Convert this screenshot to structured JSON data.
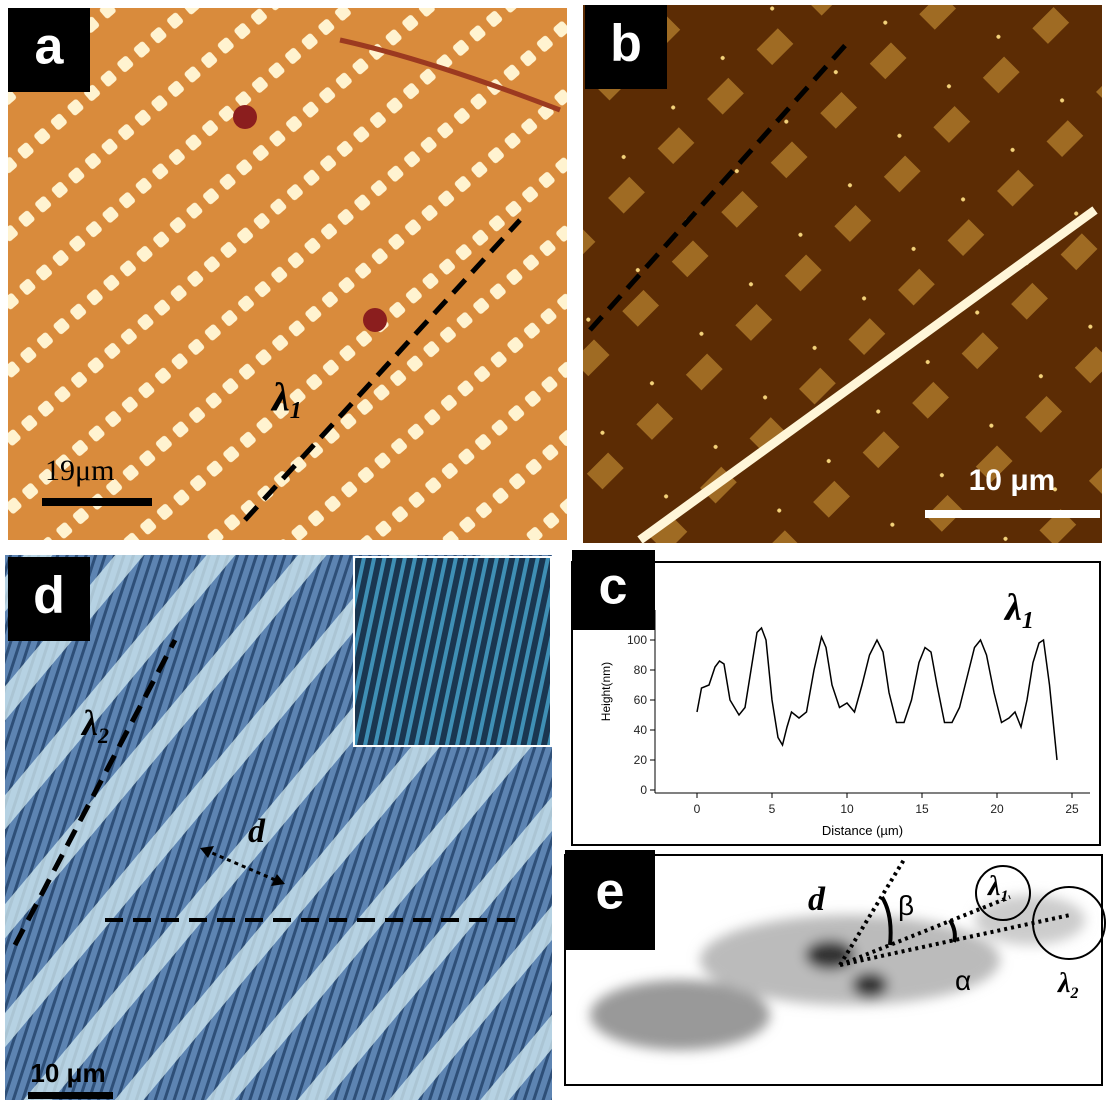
{
  "panels": {
    "a": {
      "label": "a",
      "scale_bar": "19μm",
      "annotation": {
        "symbol": "λ",
        "subscript": "1"
      }
    },
    "b": {
      "label": "b",
      "scale_bar": "10 μm"
    },
    "c": {
      "label": "c"
    },
    "d": {
      "label": "d",
      "scale_bar": "10 μm",
      "annotation": {
        "symbol": "λ",
        "subscript": "2"
      },
      "arrow_label": "d"
    },
    "e": {
      "label": "e",
      "center_label": "d",
      "angle_1": "β",
      "angle_2": "α",
      "circle_1": {
        "symbol": "λ",
        "subscript": "1"
      },
      "circle_2": {
        "symbol": "λ",
        "subscript": "2"
      }
    }
  },
  "chart_data": {
    "type": "line",
    "annotation": {
      "symbol": "λ",
      "subscript": "1"
    },
    "xlabel": "Distance (µm)",
    "ylabel": "Height(nm)",
    "x": [
      0,
      0.3,
      0.8,
      1.2,
      1.5,
      1.8,
      2.2,
      2.8,
      3.2,
      3.6,
      4.0,
      4.3,
      4.6,
      5.0,
      5.4,
      5.7,
      6.0,
      6.3,
      6.8,
      7.3,
      7.8,
      8.3,
      8.6,
      9.0,
      9.5,
      10.0,
      10.5,
      11.0,
      11.5,
      12.0,
      12.4,
      12.8,
      13.3,
      13.8,
      14.3,
      14.8,
      15.2,
      15.6,
      16.0,
      16.5,
      17.0,
      17.5,
      18.0,
      18.5,
      18.9,
      19.3,
      19.8,
      20.3,
      20.8,
      21.2,
      21.6,
      22.0,
      22.4,
      22.8,
      23.1,
      23.5,
      24.0
    ],
    "series": [
      {
        "color": "#000000",
        "values": [
          52,
          68,
          70,
          82,
          86,
          84,
          60,
          50,
          55,
          80,
          105,
          108,
          100,
          60,
          35,
          30,
          42,
          52,
          48,
          52,
          80,
          102,
          95,
          70,
          55,
          58,
          52,
          70,
          90,
          100,
          92,
          65,
          45,
          45,
          60,
          85,
          95,
          92,
          70,
          45,
          45,
          55,
          75,
          95,
          100,
          90,
          65,
          45,
          48,
          52,
          42,
          60,
          85,
          98,
          100,
          70,
          20
        ]
      }
    ],
    "xlim": [
      -2.8,
      26.2
    ],
    "ylim": [
      -2,
      120
    ],
    "xticks": [
      0,
      5,
      10,
      15,
      20,
      25
    ],
    "yticks": [
      0,
      20,
      40,
      60,
      80,
      100
    ]
  }
}
